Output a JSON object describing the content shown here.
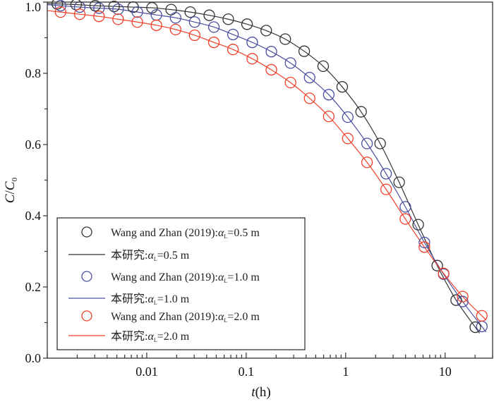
{
  "chart_data": {
    "type": "scatter",
    "xscale": "log",
    "xlabel_italic": "t",
    "xlabel_rest": "(h)",
    "ylabel_c": "C",
    "ylabel_slash": "/",
    "ylabel_c0": "C",
    "ylabel_sub": "0",
    "xlim": [
      0.001,
      30
    ],
    "ylim": [
      0,
      1.0
    ],
    "xticks": [
      0.01,
      0.1,
      1,
      10
    ],
    "xtick_labels": [
      "0.01",
      "0.1",
      "1",
      "10"
    ],
    "yticks": [
      0,
      0.2,
      0.4,
      0.6,
      0.8,
      1.0
    ],
    "ytick_labels": [
      "0.0",
      "0.2",
      "0.4",
      "0.6",
      "0.8",
      "1.0"
    ],
    "legend_position": "bottom-left",
    "series": [
      {
        "name": "Wang and Zhan (2019):αL=0.5 m",
        "kind": "points",
        "color": "#333333",
        "x": [
          0.00126,
          0.00195,
          0.00303,
          0.0047,
          0.0073,
          0.0113,
          0.0176,
          0.0274,
          0.0425,
          0.066,
          0.102,
          0.159,
          0.247,
          0.383,
          0.594,
          0.923,
          1.43,
          2.22,
          3.45,
          5.36,
          8.33,
          12.9,
          20.1
        ],
        "y": [
          0.995,
          0.993,
          0.99,
          0.988,
          0.986,
          0.984,
          0.979,
          0.972,
          0.963,
          0.952,
          0.938,
          0.92,
          0.896,
          0.862,
          0.82,
          0.762,
          0.692,
          0.603,
          0.494,
          0.375,
          0.26,
          0.163,
          0.087
        ]
      },
      {
        "name": "本研究:αL=0.5 m",
        "kind": "line",
        "color": "#333333",
        "fit_of": 0
      },
      {
        "name": "Wang and Zhan (2019):αL=1.0 m",
        "kind": "points",
        "color": "#4a4fa0",
        "x": [
          0.00136,
          0.00212,
          0.00331,
          0.00515,
          0.00804,
          0.0125,
          0.0195,
          0.0303,
          0.0473,
          0.0736,
          0.115,
          0.179,
          0.279,
          0.434,
          0.676,
          1.05,
          1.64,
          2.55,
          3.98,
          6.19,
          9.66,
          15.0,
          23.4
        ],
        "y": [
          0.99,
          0.986,
          0.983,
          0.98,
          0.972,
          0.964,
          0.956,
          0.944,
          0.93,
          0.909,
          0.887,
          0.861,
          0.829,
          0.788,
          0.74,
          0.677,
          0.603,
          0.518,
          0.425,
          0.325,
          0.236,
          0.159,
          0.089
        ]
      },
      {
        "name": "本研究:αL=1.0 m",
        "kind": "line",
        "color": "#4a4fa0",
        "fit_of": 2
      },
      {
        "name": "Wang and Zhan (2019):αL=2.0 m",
        "kind": "points",
        "color": "#f0402a",
        "x": [
          0.00136,
          0.00212,
          0.00331,
          0.00515,
          0.00804,
          0.0125,
          0.0195,
          0.0303,
          0.0473,
          0.0736,
          0.115,
          0.179,
          0.279,
          0.434,
          0.676,
          1.05,
          1.64,
          2.55,
          3.98,
          6.19,
          9.66,
          15.0,
          23.4
        ],
        "y": [
          0.972,
          0.966,
          0.96,
          0.952,
          0.944,
          0.935,
          0.923,
          0.907,
          0.887,
          0.867,
          0.841,
          0.81,
          0.774,
          0.73,
          0.679,
          0.617,
          0.55,
          0.474,
          0.391,
          0.312,
          0.238,
          0.173,
          0.119
        ]
      },
      {
        "name": "本研究:αL=2.0 m",
        "kind": "line",
        "color": "#f0402a",
        "fit_of": 4
      }
    ],
    "legend": [
      {
        "prefix": "Wang and Zhan (2019):",
        "alpha": "α",
        "sub": "L",
        "suffix": "=0.5 m",
        "kind": "points",
        "color": "#333333"
      },
      {
        "prefix": "本研究:",
        "alpha": "α",
        "sub": "L",
        "suffix": "=0.5 m",
        "kind": "line",
        "color": "#333333"
      },
      {
        "prefix": "Wang and Zhan (2019):",
        "alpha": "α",
        "sub": "L",
        "suffix": "=1.0 m",
        "kind": "points",
        "color": "#4a4fa0"
      },
      {
        "prefix": "本研究:",
        "alpha": "α",
        "sub": "L",
        "suffix": "=1.0 m",
        "kind": "line",
        "color": "#4a4fa0"
      },
      {
        "prefix": "Wang and Zhan (2019):",
        "alpha": "α",
        "sub": "L",
        "suffix": "=2.0 m",
        "kind": "points",
        "color": "#f0402a"
      },
      {
        "prefix": "本研究:",
        "alpha": "α",
        "sub": "L",
        "suffix": "=2.0 m",
        "kind": "line",
        "color": "#f0402a"
      }
    ]
  }
}
